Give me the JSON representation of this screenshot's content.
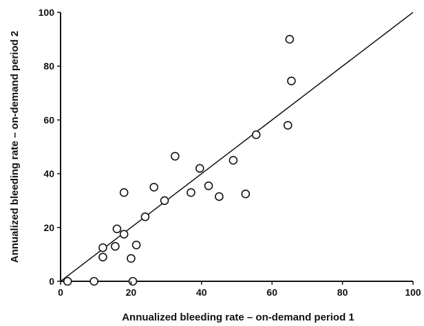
{
  "chart_data": {
    "type": "scatter",
    "title": "",
    "xlabel": "Annualized bleeding rate – on-demand period 1",
    "ylabel": "Annualized bleeding rate – on-demand period 2",
    "xlim": [
      0,
      100
    ],
    "ylim": [
      0,
      100
    ],
    "xticks": [
      0,
      20,
      40,
      60,
      80,
      100
    ],
    "yticks": [
      0,
      20,
      40,
      60,
      80,
      100
    ],
    "grid": false,
    "reference_line": {
      "from": [
        0,
        0
      ],
      "to": [
        100,
        100
      ]
    },
    "points": [
      {
        "x": 2,
        "y": 0
      },
      {
        "x": 9.5,
        "y": 0
      },
      {
        "x": 20.5,
        "y": 0
      },
      {
        "x": 12,
        "y": 9
      },
      {
        "x": 12,
        "y": 12.5
      },
      {
        "x": 15.5,
        "y": 13
      },
      {
        "x": 16,
        "y": 19.5
      },
      {
        "x": 18,
        "y": 17.5
      },
      {
        "x": 18,
        "y": 33
      },
      {
        "x": 20,
        "y": 8.5
      },
      {
        "x": 21.5,
        "y": 13.5
      },
      {
        "x": 24,
        "y": 24
      },
      {
        "x": 26.5,
        "y": 35
      },
      {
        "x": 29.5,
        "y": 30
      },
      {
        "x": 32.5,
        "y": 46.5
      },
      {
        "x": 37,
        "y": 33
      },
      {
        "x": 39.5,
        "y": 42
      },
      {
        "x": 42,
        "y": 35.5
      },
      {
        "x": 45,
        "y": 31.5
      },
      {
        "x": 49,
        "y": 45
      },
      {
        "x": 52.5,
        "y": 32.5
      },
      {
        "x": 55.5,
        "y": 54.5
      },
      {
        "x": 64.5,
        "y": 58
      },
      {
        "x": 65,
        "y": 90
      },
      {
        "x": 65.5,
        "y": 74.5
      }
    ]
  }
}
